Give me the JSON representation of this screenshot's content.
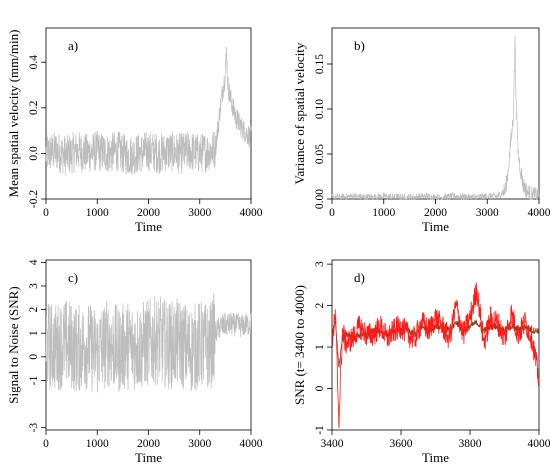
{
  "chart_data": [
    {
      "panel": "a)",
      "type": "line",
      "xlabel": "Time",
      "ylabel": "Mean spatial velocity (mm/min)",
      "xlim": [
        0,
        4000
      ],
      "ylim": [
        -0.2,
        0.55
      ],
      "xticks": [
        0,
        1000,
        2000,
        3000,
        4000
      ],
      "yticks": [
        -0.2,
        0.0,
        0.2,
        0.4
      ],
      "ytick_labels": [
        "-0.2",
        "0.0",
        "0.2",
        "0.4"
      ],
      "grid": false,
      "series": [
        {
          "color": "#bdbdbd",
          "x": [
            0,
            200,
            400,
            600,
            800,
            1000,
            1200,
            1400,
            1600,
            1800,
            2000,
            2200,
            2400,
            2600,
            2800,
            3000,
            3200,
            3300,
            3350,
            3400,
            3450,
            3500,
            3520,
            3550,
            3600,
            3650,
            3700,
            3800,
            3900,
            4000
          ],
          "y": [
            0.0,
            0.01,
            -0.01,
            0.01,
            0.0,
            0.01,
            0.0,
            0.01,
            -0.01,
            0.0,
            0.01,
            0.0,
            0.01,
            0.0,
            0.01,
            0.0,
            0.01,
            0.02,
            0.1,
            0.2,
            0.28,
            0.35,
            0.45,
            0.3,
            0.24,
            0.2,
            0.16,
            0.12,
            0.09,
            0.07
          ]
        }
      ]
    },
    {
      "panel": "b)",
      "type": "line",
      "xlabel": "Time",
      "ylabel": "Variance of spatial velocity",
      "xlim": [
        0,
        4000
      ],
      "ylim": [
        0,
        0.19
      ],
      "xticks": [
        0,
        1000,
        2000,
        3000,
        4000
      ],
      "yticks": [
        0.0,
        0.05,
        0.1,
        0.15
      ],
      "ytick_labels": [
        "0.00",
        "0.05",
        "0.10",
        "0.15"
      ],
      "grid": false,
      "series": [
        {
          "color": "#bdbdbd",
          "x": [
            0,
            200,
            400,
            600,
            800,
            1000,
            1200,
            1400,
            1600,
            1800,
            2000,
            2200,
            2400,
            2600,
            2800,
            3000,
            3200,
            3350,
            3400,
            3450,
            3500,
            3540,
            3560,
            3600,
            3650,
            3700,
            3800,
            3900,
            4000
          ],
          "y": [
            0.002,
            0.002,
            0.003,
            0.002,
            0.002,
            0.003,
            0.002,
            0.002,
            0.002,
            0.003,
            0.002,
            0.002,
            0.003,
            0.002,
            0.002,
            0.003,
            0.003,
            0.01,
            0.03,
            0.06,
            0.09,
            0.18,
            0.1,
            0.05,
            0.03,
            0.015,
            0.006,
            0.004,
            0.003
          ]
        }
      ]
    },
    {
      "panel": "c)",
      "type": "line",
      "xlabel": "Time",
      "ylabel": "Signal to Noise (SNR)",
      "xlim": [
        0,
        4000
      ],
      "ylim": [
        -3.1,
        4.1
      ],
      "xticks": [
        0,
        1000,
        2000,
        3000,
        4000
      ],
      "yticks": [
        -3,
        -1,
        0,
        1,
        2,
        3,
        4
      ],
      "ytick_labels": [
        "-3",
        "-1",
        "0",
        "1",
        "2",
        "3",
        "4"
      ],
      "grid": false,
      "series": [
        {
          "color": "#bdbdbd",
          "x": [
            0,
            200,
            400,
            600,
            800,
            1000,
            1200,
            1400,
            1600,
            1800,
            2000,
            2200,
            2400,
            2600,
            2800,
            3000,
            3200,
            3300,
            3400,
            3600,
            3800,
            4000
          ],
          "y": [
            0.5,
            0.4,
            0.6,
            0.3,
            0.5,
            0.2,
            0.6,
            0.3,
            0.5,
            0.4,
            0.6,
            0.7,
            0.5,
            0.6,
            0.3,
            0.5,
            0.4,
            1.0,
            1.3,
            1.4,
            1.3,
            1.4
          ]
        }
      ]
    },
    {
      "panel": "d)",
      "type": "line",
      "xlabel": "Time",
      "ylabel": "SNR (t= 3400 to 4000)",
      "xlim": [
        3400,
        4000
      ],
      "ylim": [
        -1,
        3.1
      ],
      "xticks": [
        3400,
        3600,
        3800,
        4000
      ],
      "yticks": [
        -1,
        0,
        1,
        2,
        3
      ],
      "ytick_labels": [
        "-1",
        "0",
        "1",
        "2",
        "3"
      ],
      "grid": false,
      "series": [
        {
          "color": "#8b3a1a",
          "x": [
            3400,
            3410,
            3420,
            3430,
            3440,
            3460,
            3480,
            3500,
            3520,
            3540,
            3560,
            3580,
            3600,
            3620,
            3640,
            3660,
            3680,
            3700,
            3720,
            3740,
            3760,
            3780,
            3800,
            3820,
            3840,
            3860,
            3880,
            3900,
            3920,
            3940,
            3960,
            3980,
            4000
          ],
          "y": [
            1.3,
            1.6,
            0.5,
            1.2,
            1.3,
            1.2,
            1.3,
            1.3,
            1.4,
            1.4,
            1.3,
            1.4,
            1.4,
            1.4,
            1.3,
            1.5,
            1.4,
            1.5,
            1.5,
            1.4,
            1.6,
            1.4,
            1.5,
            1.6,
            1.4,
            1.5,
            1.5,
            1.4,
            1.5,
            1.4,
            1.5,
            1.4,
            1.4
          ]
        },
        {
          "color": "#ff1a1a",
          "x": [
            3400,
            3410,
            3420,
            3430,
            3440,
            3460,
            3480,
            3500,
            3520,
            3540,
            3560,
            3580,
            3600,
            3620,
            3640,
            3660,
            3680,
            3700,
            3720,
            3740,
            3760,
            3780,
            3800,
            3820,
            3840,
            3860,
            3880,
            3900,
            3920,
            3940,
            3960,
            3980,
            4000
          ],
          "y": [
            1.1,
            1.8,
            -0.8,
            1.4,
            1.1,
            1.2,
            1.5,
            1.3,
            1.3,
            1.5,
            1.2,
            1.4,
            1.5,
            1.3,
            1.2,
            1.6,
            1.4,
            1.7,
            1.5,
            1.2,
            2.0,
            1.3,
            1.7,
            2.4,
            1.1,
            1.7,
            1.6,
            1.2,
            1.8,
            1.3,
            1.6,
            1.2,
            0.2
          ]
        }
      ]
    }
  ]
}
